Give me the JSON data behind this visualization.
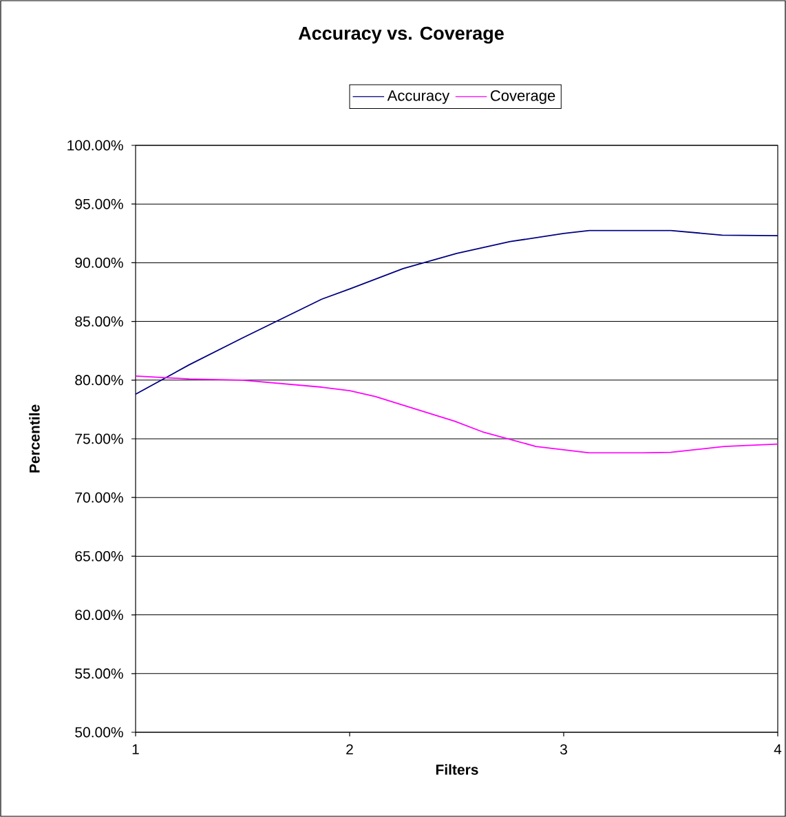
{
  "chart_data": {
    "type": "line",
    "title": "Accuracy vs. Coverage",
    "xlabel": "Filters",
    "ylabel": "Percentile",
    "xlim": [
      1,
      4
    ],
    "xticks": [
      1,
      2,
      3,
      4
    ],
    "ylim": [
      50,
      100
    ],
    "yticks": [
      {
        "value": 50,
        "label": "50.00%"
      },
      {
        "value": 55,
        "label": "55.00%"
      },
      {
        "value": 60,
        "label": "60.00%"
      },
      {
        "value": 65,
        "label": "65.00%"
      },
      {
        "value": 70,
        "label": "70.00%"
      },
      {
        "value": 75,
        "label": "75.00%"
      },
      {
        "value": 80,
        "label": "80.00%"
      },
      {
        "value": 85,
        "label": "85.00%"
      },
      {
        "value": 90,
        "label": "90.00%"
      },
      {
        "value": 95,
        "label": "95.00%"
      },
      {
        "value": 100,
        "label": "100.00%"
      }
    ],
    "grid": "y",
    "legend": "top",
    "marker": "none",
    "line_style": "solid",
    "series": [
      {
        "name": "Accuracy",
        "color": "#000080",
        "x": [
          1,
          1.25,
          1.5,
          1.87,
          2.02,
          2.25,
          2.5,
          2.75,
          3.0,
          3.12,
          3.5,
          3.74,
          4
        ],
        "values": [
          78.8,
          81.3,
          83.6,
          86.9,
          87.9,
          89.5,
          90.8,
          91.8,
          92.5,
          92.75,
          92.75,
          92.35,
          92.3
        ]
      },
      {
        "name": "Coverage",
        "color": "#ff00ff",
        "x": [
          1,
          1.25,
          1.5,
          1.87,
          2.0,
          2.12,
          2.49,
          2.62,
          2.87,
          3.12,
          3.37,
          3.5,
          3.75,
          4
        ],
        "values": [
          80.35,
          80.1,
          80.0,
          79.4,
          79.1,
          78.6,
          76.5,
          75.6,
          74.35,
          73.8,
          73.8,
          73.85,
          74.35,
          74.55
        ]
      }
    ]
  }
}
